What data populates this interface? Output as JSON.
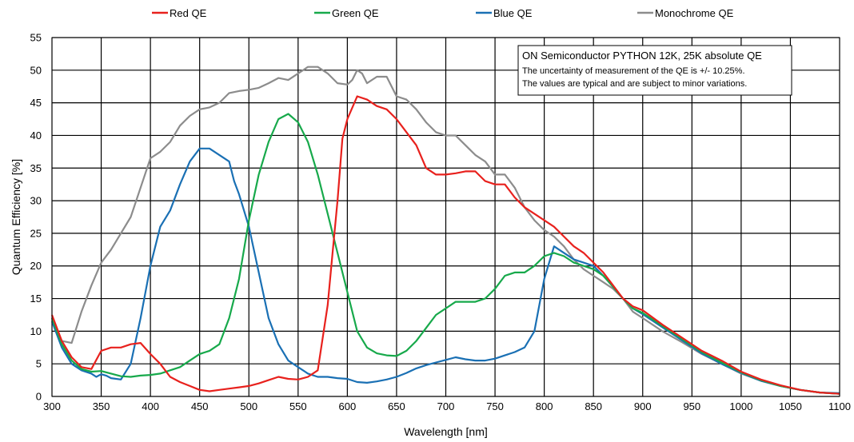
{
  "chart_data": {
    "type": "line",
    "title": "",
    "xlabel": "Wavelength [nm]",
    "ylabel": "Quantum Efficiency [%]",
    "xlim": [
      300,
      1100
    ],
    "ylim": [
      0,
      55
    ],
    "xticks": [
      300,
      350,
      400,
      450,
      500,
      550,
      600,
      650,
      700,
      750,
      800,
      850,
      900,
      950,
      1000,
      1050,
      1100
    ],
    "yticks": [
      0,
      5,
      10,
      15,
      20,
      25,
      30,
      35,
      40,
      45,
      50,
      55
    ],
    "grid": true,
    "legend_position": "top",
    "annotation": {
      "title": "ON Semiconductor PYTHON 12K, 25K absolute QE",
      "lines": [
        "The uncertainty of measurement of the QE is +/- 10.25%.",
        "The values are typical and are subject to minor variations."
      ]
    },
    "series": [
      {
        "name": "Red QE",
        "color": "#e8211d",
        "x": [
          300,
          310,
          320,
          330,
          340,
          350,
          360,
          370,
          380,
          390,
          400,
          410,
          420,
          430,
          440,
          450,
          460,
          470,
          480,
          490,
          500,
          510,
          520,
          530,
          540,
          550,
          560,
          570,
          580,
          585,
          590,
          595,
          600,
          610,
          620,
          630,
          640,
          650,
          660,
          670,
          680,
          690,
          700,
          710,
          720,
          730,
          740,
          750,
          760,
          770,
          780,
          790,
          800,
          810,
          820,
          830,
          840,
          850,
          860,
          870,
          880,
          890,
          900,
          920,
          940,
          960,
          980,
          1000,
          1020,
          1040,
          1060,
          1080,
          1100
        ],
        "y": [
          12.5,
          8.5,
          6.0,
          4.5,
          4.2,
          7.0,
          7.5,
          7.5,
          8.0,
          8.2,
          6.5,
          5.0,
          3.0,
          2.2,
          1.6,
          1.0,
          0.8,
          1.0,
          1.2,
          1.4,
          1.6,
          2.0,
          2.5,
          3.0,
          2.7,
          2.6,
          3.0,
          4.0,
          14.0,
          22.0,
          30.0,
          39.5,
          42.5,
          46.0,
          45.5,
          44.5,
          44.0,
          42.5,
          40.5,
          38.5,
          35.0,
          34.0,
          34.0,
          34.2,
          34.5,
          34.5,
          33.0,
          32.5,
          32.5,
          30.5,
          29.0,
          28.0,
          27.0,
          26.0,
          24.5,
          23.0,
          22.0,
          20.5,
          19.0,
          17.0,
          15.0,
          13.8,
          13.2,
          11.0,
          9.0,
          7.0,
          5.5,
          3.8,
          2.6,
          1.7,
          1.0,
          0.6,
          0.4
        ]
      },
      {
        "name": "Green QE",
        "color": "#17a94b",
        "x": [
          300,
          310,
          320,
          330,
          340,
          350,
          360,
          370,
          380,
          390,
          400,
          410,
          420,
          430,
          440,
          450,
          460,
          470,
          480,
          490,
          500,
          510,
          520,
          530,
          540,
          550,
          560,
          570,
          580,
          590,
          600,
          610,
          620,
          630,
          640,
          650,
          660,
          670,
          680,
          690,
          700,
          710,
          720,
          730,
          740,
          750,
          760,
          770,
          780,
          790,
          800,
          810,
          820,
          830,
          840,
          850,
          860,
          870,
          880,
          890,
          900,
          920,
          940,
          960,
          980,
          1000,
          1020,
          1040,
          1060,
          1080,
          1100
        ],
        "y": [
          12.0,
          8.0,
          5.5,
          4.2,
          3.8,
          3.9,
          3.5,
          3.1,
          3.0,
          3.2,
          3.3,
          3.5,
          4.0,
          4.5,
          5.5,
          6.5,
          7.0,
          8.0,
          12.0,
          18.0,
          27.0,
          34.0,
          39.0,
          42.5,
          43.3,
          42.0,
          39.0,
          34.0,
          28.0,
          22.0,
          16.0,
          10.0,
          7.5,
          6.6,
          6.3,
          6.2,
          7.0,
          8.5,
          10.5,
          12.5,
          13.5,
          14.5,
          14.5,
          14.5,
          15.0,
          16.5,
          18.5,
          19.0,
          19.0,
          20.0,
          21.5,
          22.0,
          21.5,
          20.5,
          20.0,
          19.5,
          18.5,
          16.8,
          15.0,
          13.5,
          12.8,
          10.8,
          8.8,
          6.8,
          5.2,
          3.7,
          2.5,
          1.6,
          1.0,
          0.6,
          0.4
        ]
      },
      {
        "name": "Blue QE",
        "color": "#1a70b4",
        "x": [
          300,
          310,
          320,
          330,
          340,
          345,
          350,
          355,
          360,
          370,
          380,
          390,
          400,
          410,
          420,
          430,
          440,
          450,
          460,
          470,
          480,
          485,
          490,
          500,
          510,
          520,
          530,
          540,
          550,
          560,
          570,
          580,
          590,
          600,
          610,
          620,
          630,
          640,
          650,
          660,
          670,
          680,
          690,
          700,
          710,
          720,
          730,
          740,
          750,
          760,
          770,
          780,
          790,
          800,
          810,
          820,
          830,
          840,
          850,
          860,
          870,
          880,
          890,
          900,
          920,
          940,
          960,
          980,
          1000,
          1020,
          1040,
          1060,
          1080,
          1100
        ],
        "y": [
          11.5,
          7.5,
          5.0,
          4.0,
          3.5,
          3.0,
          3.4,
          3.2,
          2.8,
          2.6,
          5.0,
          12.0,
          20.0,
          26.0,
          28.5,
          32.5,
          36.0,
          38.0,
          38.0,
          37.0,
          36.0,
          33.0,
          31.0,
          26.0,
          19.0,
          12.0,
          8.0,
          5.5,
          4.5,
          3.5,
          3.0,
          3.0,
          2.8,
          2.7,
          2.2,
          2.1,
          2.3,
          2.6,
          3.0,
          3.6,
          4.3,
          4.8,
          5.2,
          5.6,
          6.0,
          5.7,
          5.5,
          5.5,
          5.8,
          6.3,
          6.8,
          7.5,
          10.0,
          18.0,
          23.0,
          22.0,
          21.0,
          20.5,
          20.0,
          18.5,
          16.8,
          15.0,
          13.5,
          12.6,
          10.6,
          8.6,
          6.6,
          5.0,
          3.6,
          2.4,
          1.6,
          1.0,
          0.6,
          0.5
        ]
      },
      {
        "name": "Monochrome QE",
        "color": "#8c8c8c",
        "x": [
          300,
          310,
          320,
          330,
          340,
          350,
          360,
          370,
          380,
          390,
          400,
          410,
          420,
          430,
          440,
          450,
          460,
          470,
          480,
          490,
          500,
          510,
          520,
          530,
          540,
          550,
          560,
          570,
          580,
          590,
          600,
          605,
          610,
          615,
          620,
          630,
          640,
          650,
          660,
          670,
          680,
          690,
          700,
          710,
          720,
          730,
          740,
          750,
          760,
          770,
          780,
          790,
          800,
          810,
          820,
          830,
          840,
          850,
          860,
          870,
          880,
          890,
          900,
          920,
          940,
          960,
          980,
          1000,
          1020,
          1040,
          1060,
          1080,
          1100
        ],
        "y": [
          12.0,
          8.5,
          8.2,
          13.0,
          17.0,
          20.5,
          22.5,
          25.0,
          27.5,
          32.0,
          36.5,
          37.5,
          39.0,
          41.5,
          43.0,
          44.0,
          44.3,
          45.0,
          46.5,
          46.8,
          47.0,
          47.3,
          48.0,
          48.8,
          48.5,
          49.5,
          50.5,
          50.5,
          49.5,
          48.0,
          47.8,
          48.5,
          50.0,
          49.5,
          48.0,
          49.0,
          49.0,
          46.0,
          45.5,
          44.0,
          42.0,
          40.5,
          40.0,
          40.0,
          38.5,
          37.0,
          36.0,
          34.0,
          34.0,
          32.0,
          29.0,
          27.0,
          25.5,
          24.5,
          23.0,
          21.0,
          19.5,
          18.5,
          17.5,
          16.5,
          15.0,
          13.0,
          12.0,
          10.0,
          8.3,
          6.5,
          5.0,
          3.5,
          2.4,
          1.6,
          1.0,
          0.6,
          0.4
        ]
      }
    ]
  }
}
